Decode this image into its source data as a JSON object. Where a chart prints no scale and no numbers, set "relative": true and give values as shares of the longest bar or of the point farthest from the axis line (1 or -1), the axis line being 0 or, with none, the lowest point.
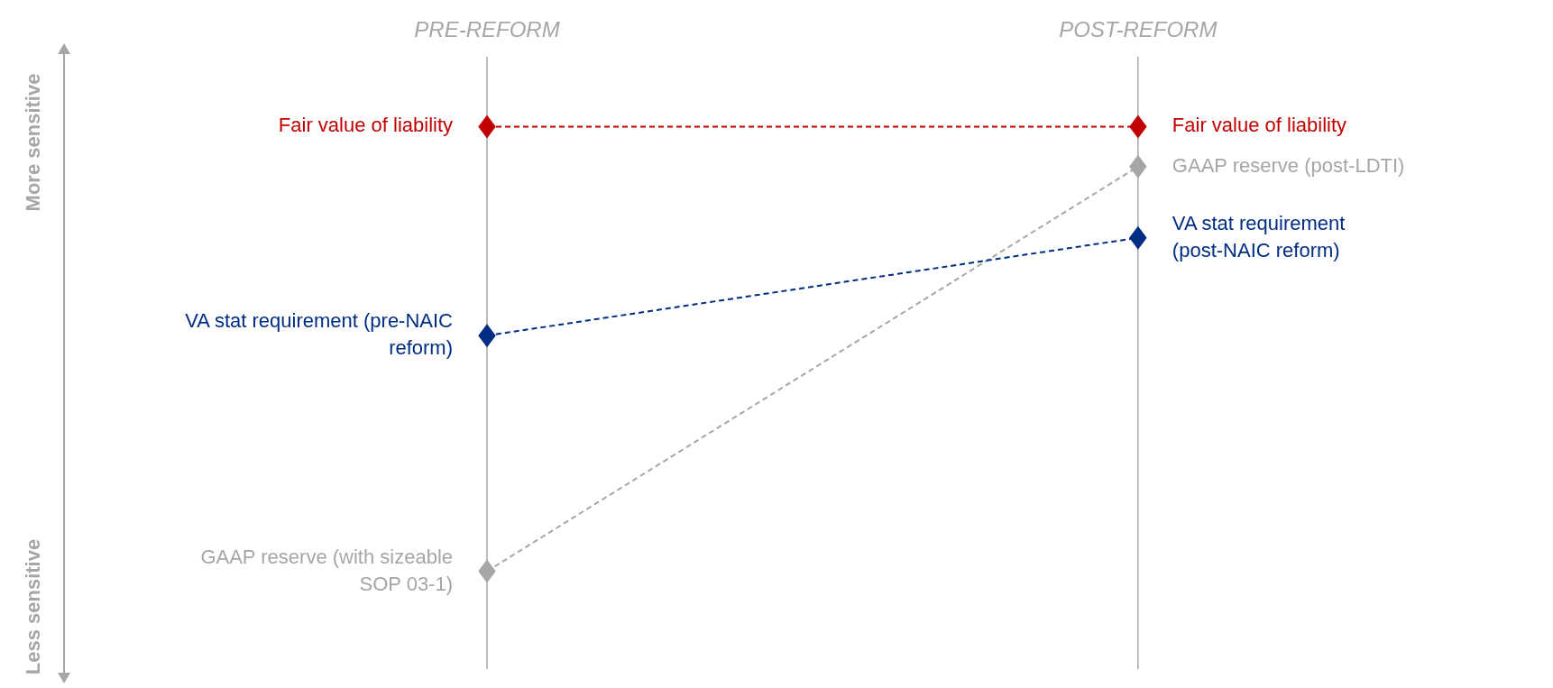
{
  "chart_data": {
    "type": "line",
    "relative": true,
    "categories": [
      "PRE-REFORM",
      "POST-REFORM"
    ],
    "ref_lines": [
      {
        "axis": "x",
        "value": "PRE-REFORM",
        "color": "#a6a6a6"
      },
      {
        "axis": "x",
        "value": "POST-REFORM",
        "color": "#a6a6a6"
      }
    ],
    "marker": "diamond",
    "line_style": "dashed",
    "series": [
      {
        "color": "#c00000",
        "values": [
          1,
          1
        ]
      },
      {
        "color": "#a6a6a6",
        "values": [
          0,
          0.91
        ]
      },
      {
        "color": "#002d84",
        "values": [
          0.53,
          0.75
        ]
      }
    ],
    "annotations": [
      "More sensitive",
      "Less sensitive",
      {
        "text": "Fair value of liability",
        "x": "PRE-REFORM",
        "y": 1
      },
      {
        "text": "VA stat requirement (pre-NAIC reform)",
        "x": "PRE-REFORM",
        "y": 0.53
      },
      {
        "text": "GAAP reserve (with sizeable SOP 03-1)",
        "x": "PRE-REFORM",
        "y": 0
      },
      {
        "text": "Fair value of liability",
        "x": "POST-REFORM",
        "y": 1
      },
      {
        "text": "GAAP reserve (post-LDTI)",
        "x": "POST-REFORM",
        "y": 0.91
      },
      {
        "text": "VA stat requirement (post-NAIC reform)",
        "x": "POST-REFORM",
        "y": 0.75
      }
    ]
  }
}
